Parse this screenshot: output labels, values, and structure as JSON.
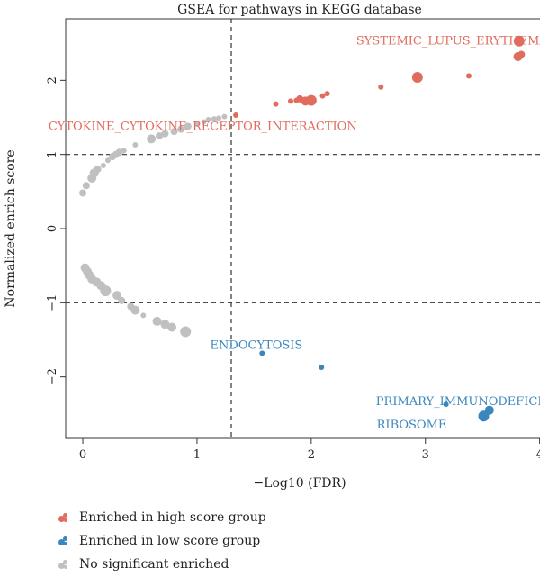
{
  "chart_data": {
    "type": "scatter",
    "title": "GSEA for pathways in KEGG database",
    "xlabel": "−Log10 (FDR)",
    "ylabel": "Normalized enrich score",
    "xlim": [
      -0.15,
      4.05
    ],
    "ylim": [
      -2.83,
      2.83
    ],
    "xticks": [
      0,
      1,
      2,
      3,
      4
    ],
    "yticks": [
      -2,
      -1,
      0,
      1,
      2
    ],
    "ytick_labels": [
      "−2",
      "−1",
      "0",
      "1",
      "2"
    ],
    "threshold_x": 1.3,
    "threshold_y": [
      1,
      -1
    ],
    "colors": {
      "high": "#e06c5e",
      "low": "#3a87be",
      "ns": "#c0c0c0"
    },
    "series": [
      {
        "name": "Enriched in high score group",
        "key": "high",
        "points": [
          {
            "x": 1.34,
            "y": 1.53,
            "s": 3
          },
          {
            "x": 1.69,
            "y": 1.68,
            "s": 3
          },
          {
            "x": 1.82,
            "y": 1.72,
            "s": 3
          },
          {
            "x": 1.87,
            "y": 1.73,
            "s": 3
          },
          {
            "x": 1.9,
            "y": 1.75,
            "s": 4
          },
          {
            "x": 1.95,
            "y": 1.72,
            "s": 5
          },
          {
            "x": 2.0,
            "y": 1.73,
            "s": 6
          },
          {
            "x": 2.1,
            "y": 1.79,
            "s": 3
          },
          {
            "x": 2.14,
            "y": 1.82,
            "s": 3
          },
          {
            "x": 2.61,
            "y": 1.91,
            "s": 3
          },
          {
            "x": 2.93,
            "y": 2.04,
            "s": 6
          },
          {
            "x": 3.38,
            "y": 2.06,
            "s": 3
          },
          {
            "x": 3.82,
            "y": 2.53,
            "s": 6
          },
          {
            "x": 3.81,
            "y": 2.32,
            "s": 5
          },
          {
            "x": 3.84,
            "y": 2.35,
            "s": 4
          }
        ]
      },
      {
        "name": "Enriched in low score group",
        "key": "low",
        "points": [
          {
            "x": 1.57,
            "y": -1.68,
            "s": 3
          },
          {
            "x": 2.09,
            "y": -1.87,
            "s": 3
          },
          {
            "x": 3.18,
            "y": -2.37,
            "s": 3
          },
          {
            "x": 3.51,
            "y": -2.53,
            "s": 6
          },
          {
            "x": 3.56,
            "y": -2.45,
            "s": 5
          }
        ]
      },
      {
        "name": "No significant enriched",
        "key": "ns",
        "points": [
          {
            "x": 0.0,
            "y": 0.48,
            "s": 4
          },
          {
            "x": 0.03,
            "y": 0.58,
            "s": 4
          },
          {
            "x": 0.08,
            "y": 0.68,
            "s": 5
          },
          {
            "x": 0.1,
            "y": 0.75,
            "s": 5
          },
          {
            "x": 0.13,
            "y": 0.8,
            "s": 4
          },
          {
            "x": 0.18,
            "y": 0.85,
            "s": 3
          },
          {
            "x": 0.22,
            "y": 0.92,
            "s": 3
          },
          {
            "x": 0.26,
            "y": 0.97,
            "s": 4
          },
          {
            "x": 0.29,
            "y": 1.0,
            "s": 4
          },
          {
            "x": 0.32,
            "y": 1.03,
            "s": 4
          },
          {
            "x": 0.36,
            "y": 1.05,
            "s": 3
          },
          {
            "x": 0.46,
            "y": 1.13,
            "s": 3
          },
          {
            "x": 0.6,
            "y": 1.21,
            "s": 5
          },
          {
            "x": 0.67,
            "y": 1.25,
            "s": 4
          },
          {
            "x": 0.72,
            "y": 1.28,
            "s": 4
          },
          {
            "x": 0.8,
            "y": 1.31,
            "s": 4
          },
          {
            "x": 0.86,
            "y": 1.34,
            "s": 4
          },
          {
            "x": 0.92,
            "y": 1.38,
            "s": 4
          },
          {
            "x": 1.0,
            "y": 1.41,
            "s": 3
          },
          {
            "x": 1.06,
            "y": 1.44,
            "s": 3
          },
          {
            "x": 1.1,
            "y": 1.47,
            "s": 3
          },
          {
            "x": 1.15,
            "y": 1.48,
            "s": 3
          },
          {
            "x": 1.19,
            "y": 1.49,
            "s": 3
          },
          {
            "x": 1.24,
            "y": 1.51,
            "s": 3
          },
          {
            "x": 0.02,
            "y": -0.53,
            "s": 5
          },
          {
            "x": 0.04,
            "y": -0.58,
            "s": 5
          },
          {
            "x": 0.06,
            "y": -0.63,
            "s": 5
          },
          {
            "x": 0.08,
            "y": -0.68,
            "s": 5
          },
          {
            "x": 0.12,
            "y": -0.72,
            "s": 5
          },
          {
            "x": 0.16,
            "y": -0.77,
            "s": 5
          },
          {
            "x": 0.2,
            "y": -0.84,
            "s": 6
          },
          {
            "x": 0.3,
            "y": -0.9,
            "s": 5
          },
          {
            "x": 0.34,
            "y": -0.97,
            "s": 4
          },
          {
            "x": 0.42,
            "y": -1.05,
            "s": 4
          },
          {
            "x": 0.46,
            "y": -1.1,
            "s": 5
          },
          {
            "x": 0.53,
            "y": -1.17,
            "s": 3
          },
          {
            "x": 0.65,
            "y": -1.25,
            "s": 5
          },
          {
            "x": 0.72,
            "y": -1.29,
            "s": 5
          },
          {
            "x": 0.78,
            "y": -1.33,
            "s": 5
          },
          {
            "x": 0.9,
            "y": -1.39,
            "s": 6
          }
        ]
      }
    ],
    "annotations": [
      {
        "text": "SYSTEMIC_LUPUS_ERYTHEMATOSUS",
        "x": 3.42,
        "y": 2.53,
        "key": "high"
      },
      {
        "text": "CYTOKINE_CYTOKINE_RECEPTOR_INTERACTION",
        "x": 1.05,
        "y": 1.38,
        "key": "high"
      },
      {
        "text": "ENDOCYTOSIS",
        "x": 1.52,
        "y": -1.57,
        "key": "low"
      },
      {
        "text": "PRIMARY_IMMUNODEFICIENCY",
        "x": 3.45,
        "y": -2.33,
        "key": "low"
      },
      {
        "text": "RIBOSOME",
        "x": 2.88,
        "y": -2.65,
        "key": "low"
      }
    ]
  }
}
